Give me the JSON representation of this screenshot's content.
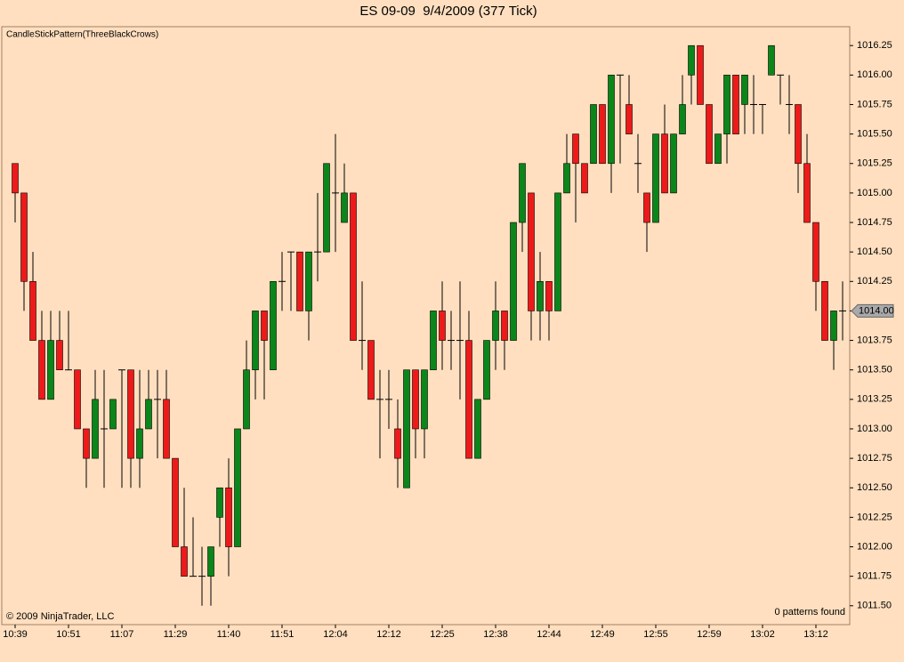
{
  "chart_data": {
    "type": "candlestick",
    "title": "ES 09-09  9/4/2009 (377 Tick)",
    "indicator_label": "CandleStickPattern(ThreeBlackCrows)",
    "copyright": "© 2009 NinjaTrader, LLC",
    "status": "0 patterns found",
    "categories": [
      "10:39",
      null,
      null,
      null,
      null,
      null,
      "10:51",
      null,
      null,
      null,
      null,
      null,
      "11:07",
      null,
      null,
      null,
      null,
      null,
      "11:29",
      null,
      null,
      null,
      null,
      null,
      "11:40",
      null,
      null,
      null,
      null,
      null,
      "11:51",
      null,
      null,
      null,
      null,
      null,
      "12:04",
      null,
      null,
      null,
      null,
      null,
      "12:12",
      null,
      null,
      null,
      null,
      null,
      "12:25",
      null,
      null,
      null,
      null,
      null,
      "12:38",
      null,
      null,
      null,
      null,
      null,
      "12:44",
      null,
      null,
      null,
      null,
      null,
      "12:49",
      null,
      null,
      null,
      null,
      null,
      "12:55",
      null,
      null,
      null,
      null,
      null,
      "12:59",
      null,
      null,
      null,
      null,
      null,
      "13:02",
      null,
      null,
      null,
      null,
      null,
      "13:12",
      null,
      null,
      null
    ],
    "open": [
      1015.25,
      1015,
      1014.25,
      1013.75,
      1013.25,
      1013.75,
      1013.5,
      1013.5,
      1013,
      1012.75,
      1013,
      1013,
      1013.5,
      1013.5,
      1012.75,
      1013,
      1013.25,
      1013.25,
      1012.75,
      1012,
      1011.75,
      1011.75,
      1011.75,
      1012.25,
      1012.5,
      1012,
      1013,
      1013.5,
      1014,
      1013.5,
      1014.25,
      1014.5,
      1014.5,
      1014,
      1014.5,
      1014.5,
      1015,
      1014.75,
      1015,
      1013.75,
      1013.75,
      1013.25,
      1013.25,
      1013,
      1012.5,
      1013.5,
      1013,
      1013.5,
      1014,
      1013.75,
      1013.75,
      1013.75,
      1012.75,
      1013.25,
      1013.75,
      1014,
      1013.75,
      1014.75,
      1015,
      1014,
      1014.25,
      1014,
      1015,
      1015.5,
      1015.25,
      1015.25,
      1015.75,
      1015.25,
      1016,
      1015.75,
      1015.25,
      1015,
      1014.75,
      1015.5,
      1015,
      1015.5,
      1016,
      1016.25,
      1015.75,
      1015.25,
      1015.5,
      1016,
      1015.75,
      1015.75,
      1015.75,
      1016,
      1016,
      1015.75,
      1015.75,
      1015.25,
      1014.75,
      1014.25,
      1013.75,
      1014
    ],
    "high": [
      1015.25,
      1015,
      1014.5,
      1014,
      1014,
      1014,
      1014,
      1013.5,
      1013,
      1013.5,
      1013.5,
      1013.25,
      1013.5,
      1013.5,
      1013.5,
      1013.5,
      1013.5,
      1013.5,
      1012.75,
      1012.5,
      1012.25,
      1012,
      1012,
      1012.5,
      1012.75,
      1013,
      1013.75,
      1014,
      1014,
      1014.25,
      1014.5,
      1014.5,
      1014.5,
      1014.5,
      1015,
      1015.25,
      1015.5,
      1015.25,
      1015,
      1014.25,
      1013.75,
      1013.5,
      1013.5,
      1013.25,
      1013.5,
      1013.5,
      1013.5,
      1014,
      1014.25,
      1014,
      1014.25,
      1014,
      1013.25,
      1013.75,
      1014.25,
      1014,
      1014.75,
      1015.25,
      1015,
      1014.5,
      1014.25,
      1015,
      1015.5,
      1015.5,
      1015.25,
      1015.75,
      1015.75,
      1016,
      1016,
      1016,
      1015.5,
      1015,
      1015.5,
      1015.75,
      1015.5,
      1016,
      1016.25,
      1016.25,
      1015.75,
      1015.5,
      1016,
      1016,
      1016,
      1016,
      1015.75,
      1016.25,
      1016,
      1016,
      1015.75,
      1015.5,
      1014.75,
      1014.25,
      1014,
      1014.25
    ],
    "low": [
      1014.75,
      1014,
      1013.75,
      1013.25,
      1013.25,
      1013.5,
      1013.5,
      1013,
      1012.5,
      1012.75,
      1012.5,
      1013,
      1012.5,
      1012.5,
      1012.5,
      1013,
      1012.75,
      1012.75,
      1012,
      1011.75,
      1011.75,
      1011.5,
      1011.5,
      1012,
      1011.75,
      1012,
      1013,
      1013.25,
      1013.25,
      1013.5,
      1014,
      1014,
      1014,
      1013.75,
      1014.25,
      1014.5,
      1014.5,
      1014.75,
      1013.75,
      1013.5,
      1013.25,
      1012.75,
      1013,
      1012.5,
      1012.5,
      1012.75,
      1012.75,
      1013.5,
      1013.5,
      1013.5,
      1013.25,
      1012.75,
      1012.75,
      1013.25,
      1013.5,
      1013.5,
      1013.75,
      1014.5,
      1013.75,
      1013.75,
      1013.75,
      1014,
      1015,
      1014.75,
      1015,
      1015.25,
      1015.25,
      1015,
      1015.25,
      1015.5,
      1015,
      1014.5,
      1014.75,
      1015,
      1015,
      1015.5,
      1015.75,
      1015.75,
      1015.25,
      1015.25,
      1015.25,
      1015.5,
      1015.5,
      1015.5,
      1015.5,
      1016,
      1015.75,
      1015.5,
      1015,
      1014.75,
      1014,
      1013.75,
      1013.5,
      1013.75
    ],
    "close": [
      1015,
      1014.25,
      1013.75,
      1013.25,
      1013.75,
      1013.5,
      1013.5,
      1013,
      1012.75,
      1013.25,
      1013,
      1013.25,
      1013.5,
      1012.75,
      1013,
      1013.25,
      1013.25,
      1012.75,
      1012,
      1011.75,
      1011.75,
      1011.75,
      1012,
      1012.5,
      1012,
      1013,
      1013.5,
      1014,
      1013.75,
      1014.25,
      1014.25,
      1014.5,
      1014,
      1014.5,
      1014.5,
      1015.25,
      1015,
      1015,
      1013.75,
      1013.75,
      1013.25,
      1013.25,
      1013.25,
      1012.75,
      1013.5,
      1013,
      1013.5,
      1014,
      1013.75,
      1013.75,
      1013.75,
      1012.75,
      1013.25,
      1013.75,
      1014,
      1013.75,
      1014.75,
      1015.25,
      1014,
      1014.25,
      1014,
      1015,
      1015.25,
      1015.25,
      1015,
      1015.75,
      1015.25,
      1016,
      1016,
      1015.5,
      1015.25,
      1014.75,
      1015.5,
      1015,
      1015.5,
      1015.75,
      1016.25,
      1015.75,
      1015.25,
      1015.5,
      1016,
      1015.5,
      1016,
      1015.75,
      1015.75,
      1016.25,
      1016,
      1015.75,
      1015.25,
      1014.75,
      1014.25,
      1013.75,
      1014,
      1014
    ],
    "up_color": "#0b861a",
    "down_color": "#ee1a1a",
    "last_price": {
      "value": 1014,
      "label": "1014.00"
    },
    "ylim": [
      1011.34,
      1016.41
    ],
    "yticks": [
      1016.25,
      {
        "value": 1016,
        "label": "1016.00"
      },
      1015.75,
      {
        "value": 1015.5,
        "label": "1015.50"
      },
      1015.25,
      {
        "value": 1015,
        "label": "1015.00"
      },
      1014.75,
      {
        "value": 1014.5,
        "label": "1014.50"
      },
      1014.25,
      {
        "value": 1014,
        "label": "1014.00"
      },
      1013.75,
      {
        "value": 1013.5,
        "label": "1013.50"
      },
      1013.25,
      {
        "value": 1013,
        "label": "1013.00"
      },
      1012.75,
      {
        "value": 1012.5,
        "label": "1012.50"
      },
      1012.25,
      {
        "value": 1012,
        "label": "1012.00"
      },
      1011.75,
      {
        "value": 1011.5,
        "label": "1011.50"
      }
    ],
    "grid": false
  }
}
